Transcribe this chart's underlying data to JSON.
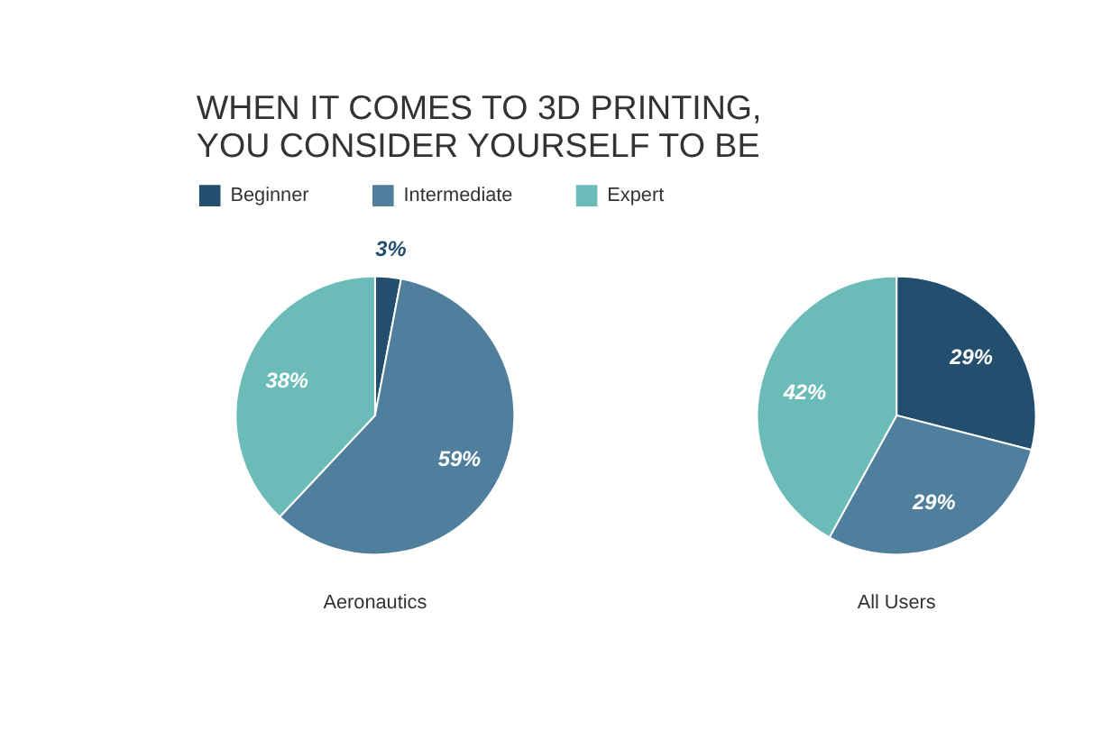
{
  "chart_data": [
    {
      "type": "pie",
      "title": "WHEN IT COMES TO 3D PRINTING,\nYOU CONSIDER YOURSELF TO BE",
      "xlabel": "Aeronautics",
      "legend": "top",
      "categories": [
        "Beginner",
        "Intermediate",
        "Expert"
      ],
      "values": [
        3,
        59,
        38
      ],
      "value_labels": [
        "3%",
        "59%",
        "38%"
      ],
      "colors": [
        "#234e6e",
        "#4f7f9c",
        "#6bbcb8"
      ]
    },
    {
      "type": "pie",
      "xlabel": "All Users",
      "categories": [
        null,
        null,
        null
      ],
      "values": [
        29,
        29,
        42
      ],
      "value_labels": [
        "29%",
        "29%",
        "42%"
      ],
      "colors": [
        "#234e6e",
        "#4f7f9c",
        "#6bbcb8"
      ]
    }
  ]
}
